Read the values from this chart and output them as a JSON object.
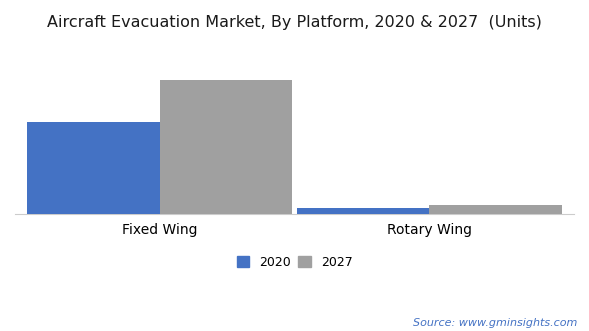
{
  "title": "Aircraft Evacuation Market, By Platform, 2020 & 2027  (Units)",
  "categories": [
    "Fixed Wing",
    "Rotary Wing"
  ],
  "series": {
    "2020": [
      55,
      4
    ],
    "2027": [
      80,
      5.5
    ]
  },
  "bar_colors": {
    "2020": "#4472c4",
    "2027": "#a0a0a0"
  },
  "ylim": [
    0,
    100
  ],
  "bar_width": 0.32,
  "background_color": "#ffffff",
  "title_fontsize": 11.5,
  "axis_fontsize": 10,
  "legend_fontsize": 9,
  "source_text": "Source: www.gminsights.com"
}
